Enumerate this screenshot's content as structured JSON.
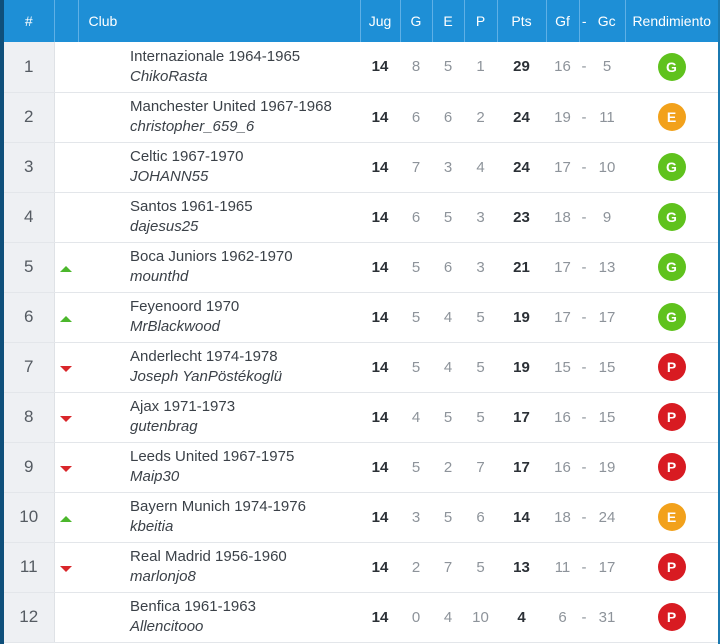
{
  "header": {
    "pos": "#",
    "club": "Club",
    "jug": "Jug",
    "g": "G",
    "e": "E",
    "p": "P",
    "pts": "Pts",
    "gf": "Gf",
    "sep": "-",
    "gc": "Gc",
    "rend": "Rendimiento"
  },
  "colors": {
    "header_bg": "#1e8fd6",
    "ganado": "#5fc21d",
    "empatado": "#f2a11b",
    "perdido": "#d81b22"
  },
  "rows": [
    {
      "pos": "1",
      "trend": "",
      "club": "Internazionale 1964-1965",
      "user": "ChikoRasta",
      "jug": "14",
      "g": "8",
      "e": "5",
      "p": "1",
      "pts": "29",
      "gf": "16",
      "sep": "-",
      "gc": "5",
      "rend": "G"
    },
    {
      "pos": "2",
      "trend": "",
      "club": "Manchester United 1967-1968",
      "user": "christopher_659_6",
      "jug": "14",
      "g": "6",
      "e": "6",
      "p": "2",
      "pts": "24",
      "gf": "19",
      "sep": "-",
      "gc": "11",
      "rend": "E"
    },
    {
      "pos": "3",
      "trend": "",
      "club": "Celtic 1967-1970",
      "user": "JOHANN55",
      "jug": "14",
      "g": "7",
      "e": "3",
      "p": "4",
      "pts": "24",
      "gf": "17",
      "sep": "-",
      "gc": "10",
      "rend": "G"
    },
    {
      "pos": "4",
      "trend": "",
      "club": "Santos 1961-1965",
      "user": "dajesus25",
      "jug": "14",
      "g": "6",
      "e": "5",
      "p": "3",
      "pts": "23",
      "gf": "18",
      "sep": "-",
      "gc": "9",
      "rend": "G"
    },
    {
      "pos": "5",
      "trend": "up",
      "club": "Boca Juniors 1962-1970",
      "user": "mounthd",
      "jug": "14",
      "g": "5",
      "e": "6",
      "p": "3",
      "pts": "21",
      "gf": "17",
      "sep": "-",
      "gc": "13",
      "rend": "G"
    },
    {
      "pos": "6",
      "trend": "up",
      "club": "Feyenoord 1970",
      "user": "MrBlackwood",
      "jug": "14",
      "g": "5",
      "e": "4",
      "p": "5",
      "pts": "19",
      "gf": "17",
      "sep": "-",
      "gc": "17",
      "rend": "G"
    },
    {
      "pos": "7",
      "trend": "down",
      "club": "Anderlecht 1974-1978",
      "user": "Joseph YanPöstékoglü",
      "jug": "14",
      "g": "5",
      "e": "4",
      "p": "5",
      "pts": "19",
      "gf": "15",
      "sep": "-",
      "gc": "15",
      "rend": "P"
    },
    {
      "pos": "8",
      "trend": "down",
      "club": "Ajax 1971-1973",
      "user": "gutenbrag",
      "jug": "14",
      "g": "4",
      "e": "5",
      "p": "5",
      "pts": "17",
      "gf": "16",
      "sep": "-",
      "gc": "15",
      "rend": "P"
    },
    {
      "pos": "9",
      "trend": "down",
      "club": "Leeds United 1967-1975",
      "user": "Maip30",
      "jug": "14",
      "g": "5",
      "e": "2",
      "p": "7",
      "pts": "17",
      "gf": "16",
      "sep": "-",
      "gc": "19",
      "rend": "P"
    },
    {
      "pos": "10",
      "trend": "up",
      "club": "Bayern Munich 1974-1976",
      "user": "kbeitia",
      "jug": "14",
      "g": "3",
      "e": "5",
      "p": "6",
      "pts": "14",
      "gf": "18",
      "sep": "-",
      "gc": "24",
      "rend": "E"
    },
    {
      "pos": "11",
      "trend": "down",
      "club": "Real Madrid 1956-1960",
      "user": "marlonjo8",
      "jug": "14",
      "g": "2",
      "e": "7",
      "p": "5",
      "pts": "13",
      "gf": "11",
      "sep": "-",
      "gc": "17",
      "rend": "P"
    },
    {
      "pos": "12",
      "trend": "",
      "club": "Benfica 1961-1963",
      "user": "Allencitooo",
      "jug": "14",
      "g": "0",
      "e": "4",
      "p": "10",
      "pts": "4",
      "gf": "6",
      "sep": "-",
      "gc": "31",
      "rend": "P"
    }
  ]
}
